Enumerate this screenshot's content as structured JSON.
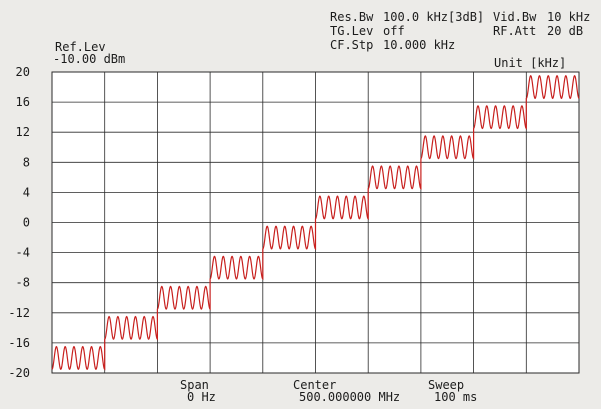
{
  "settings": {
    "res_bw_label": "Res.Bw",
    "res_bw_value": "100.0 kHz[3dB]",
    "tg_lev_label": "TG.Lev",
    "tg_lev_value": "off",
    "cf_stp_label": "CF.Stp",
    "cf_stp_value": "10.000 kHz",
    "vid_bw_label": "Vid.Bw",
    "vid_bw_value": "10 kHz",
    "rf_att_label": "RF.Att",
    "rf_att_value": "20 dB"
  },
  "ref_lev_label": "Ref.Lev",
  "ref_lev_value": "-10.00 dBm",
  "unit_label": "Unit [kHz]",
  "footer": {
    "span_label": "Span",
    "span_value": "0 Hz",
    "center_label": "Center",
    "center_value": "500.000000 MHz",
    "sweep_label": "Sweep",
    "sweep_value": "100 ms"
  },
  "colors": {
    "trace": "#c8201e",
    "grid": "#2a2a2a",
    "plot_background": "#ffffff",
    "page_background": "#ecebe8"
  },
  "chart_data": {
    "type": "line",
    "title": "",
    "xlabel": "",
    "ylabel": "Unit [kHz]",
    "ylim": [
      -20,
      20
    ],
    "y_ticks": [
      "20",
      "16",
      "12",
      "8",
      "4",
      "0",
      "-4",
      "-8",
      "-12",
      "-16",
      "-20"
    ],
    "x_divisions": 10,
    "grid": true,
    "step_center_values": [
      -18,
      -14,
      -10,
      -6,
      -2,
      2,
      6,
      10,
      14,
      18
    ],
    "oscillation_amplitude": 1.5,
    "cycles_per_step": 6
  }
}
